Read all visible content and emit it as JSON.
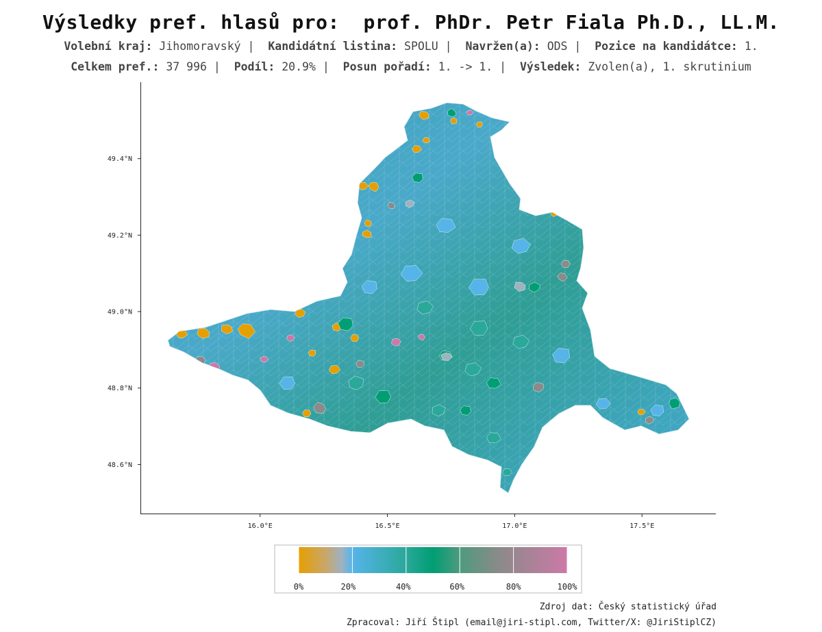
{
  "title": "Výsledky pref. hlasů pro:  prof. PhDr. Petr Fiala Ph.D., LL.M.",
  "meta_line1": [
    {
      "label": "Volební kraj:",
      "value": "Jihomoravský"
    },
    {
      "label": "Kandidátní listina:",
      "value": "SPOLU"
    },
    {
      "label": "Navržen(a):",
      "value": "ODS"
    },
    {
      "label": "Pozice na kandidátce:",
      "value": "1."
    }
  ],
  "meta_line2": [
    {
      "label": "Celkem pref.:",
      "value": "37 996"
    },
    {
      "label": "Podíl:",
      "value": "20.9%"
    },
    {
      "label": "Posun pořadí:",
      "value": "1. -> 1."
    },
    {
      "label": "Výsledek:",
      "value": "Zvolen(a), 1. skrutinium"
    }
  ],
  "chart_data": {
    "type": "choropleth",
    "region": "Jihomoravský kraj",
    "axes": {
      "x_ticks": [
        "16.0°E",
        "16.5°E",
        "17.0°E",
        "17.5°E"
      ],
      "x_values": [
        16.0,
        16.5,
        17.0,
        17.5
      ],
      "y_ticks": [
        "49.4°N",
        "49.2°N",
        "49.0°N",
        "48.8°N",
        "48.6°N"
      ],
      "y_values": [
        49.4,
        49.2,
        49.0,
        48.8,
        48.6
      ],
      "xlim": [
        15.53,
        17.79
      ],
      "ylim": [
        48.47,
        49.6
      ]
    },
    "legend": {
      "labels": [
        "0%",
        "20%",
        "40%",
        "60%",
        "80%",
        "100%"
      ],
      "positions": [
        0,
        20,
        40,
        60,
        80,
        100
      ],
      "colors": [
        "#E69F00",
        "#56B4E9",
        "#009E73",
        "#CC79A7"
      ]
    }
  },
  "footer": {
    "source": "Zdroj dat: Český statistický úřad",
    "author": "Zpracoval: Jiří Štipl (email@jiri-stipl.com, Twitter/X: @JiriStiplCZ)"
  }
}
